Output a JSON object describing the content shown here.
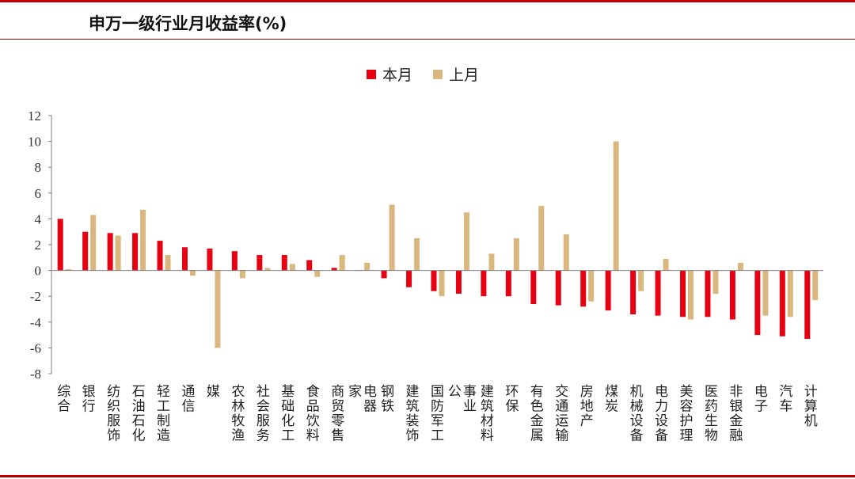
{
  "title": "申万一级行业月收益率(%)",
  "colors": {
    "current": "#e60012",
    "previous": "#d9b77f",
    "frame": "#c00000",
    "axis": "#7f7f7f"
  },
  "chart_data": {
    "type": "bar",
    "title": "申万一级行业月收益率(%)",
    "xlabel": "",
    "ylabel": "",
    "ylim": [
      -8,
      12
    ],
    "yticks": [
      -8,
      -6,
      -4,
      -2,
      0,
      2,
      4,
      6,
      8,
      10,
      12
    ],
    "grid": false,
    "legend_position": "top-center",
    "categories": [
      "综合",
      "银行",
      "纺织服饰",
      "石油石化",
      "轻工制造",
      "通信",
      "媒",
      "农林牧渔",
      "社会服务",
      "基础化工",
      "食品饮料",
      "商贸零售",
      "家 电器",
      "钢铁",
      "建筑装饰",
      "国防军工",
      "公 事业",
      "建筑材料",
      "环保",
      "有色金属",
      "交通运输",
      "房地产",
      "煤炭",
      "机械设备",
      "电力设备",
      "美容护理",
      "医药生物",
      "非银金融",
      "电子",
      "汽车",
      "计算机"
    ],
    "category_lines": [
      [
        "综合"
      ],
      [
        "银行"
      ],
      [
        "纺织服饰"
      ],
      [
        "石油石化"
      ],
      [
        "轻工制造"
      ],
      [
        "通信"
      ],
      [
        "媒"
      ],
      [
        "农林牧渔"
      ],
      [
        "社会服务"
      ],
      [
        "基础化工"
      ],
      [
        "食品饮料"
      ],
      [
        "商贸零售"
      ],
      [
        "家",
        "电器"
      ],
      [
        "钢铁"
      ],
      [
        "建筑装饰"
      ],
      [
        "国防军工"
      ],
      [
        "公",
        "事业"
      ],
      [
        "建筑材料"
      ],
      [
        "环保"
      ],
      [
        "有色金属"
      ],
      [
        "交通运输"
      ],
      [
        "房地产"
      ],
      [
        "煤炭"
      ],
      [
        "机械设备"
      ],
      [
        "电力设备"
      ],
      [
        "美容护理"
      ],
      [
        "医药生物"
      ],
      [
        "非银金融"
      ],
      [
        "电子"
      ],
      [
        "汽车"
      ],
      [
        "计算机"
      ]
    ],
    "series": [
      {
        "name": "本月",
        "values": [
          4.0,
          3.0,
          2.9,
          2.9,
          2.3,
          1.8,
          1.7,
          1.5,
          1.2,
          1.2,
          0.8,
          0.2,
          0.0,
          -0.6,
          -1.3,
          -1.6,
          -1.8,
          -2.0,
          -2.0,
          -2.6,
          -2.7,
          -2.8,
          -3.1,
          -3.4,
          -3.5,
          -3.6,
          -3.6,
          -3.8,
          -5.0,
          -5.1,
          -5.3
        ]
      },
      {
        "name": "上月",
        "values": [
          0.1,
          4.3,
          2.7,
          4.7,
          1.2,
          -0.4,
          -6.0,
          -0.6,
          0.2,
          0.5,
          -0.5,
          1.2,
          0.6,
          5.1,
          2.5,
          -2.0,
          4.5,
          1.3,
          2.5,
          5.0,
          2.8,
          -2.4,
          10.0,
          -1.6,
          0.9,
          -3.8,
          -1.8,
          0.6,
          -3.5,
          -3.6,
          -2.3
        ]
      }
    ]
  }
}
